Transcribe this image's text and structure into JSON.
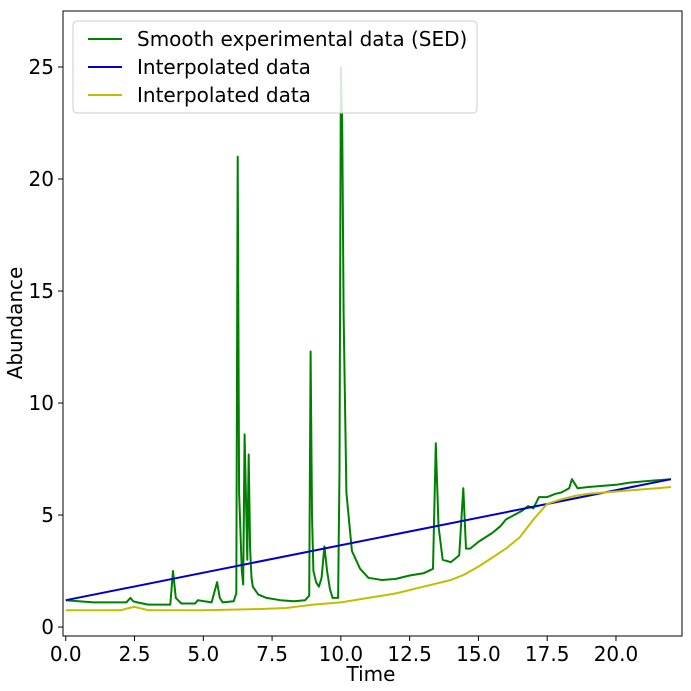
{
  "chart_data": {
    "type": "line",
    "xlabel": "Time",
    "ylabel": "Abundance",
    "xlim": [
      -0.1,
      22.4
    ],
    "ylim": [
      -0.4,
      27.5
    ],
    "xticks": [
      0.0,
      2.5,
      5.0,
      7.5,
      10.0,
      12.5,
      15.0,
      17.5,
      20.0
    ],
    "xtick_labels": [
      "0.0",
      "2.5",
      "5.0",
      "7.5",
      "10.0",
      "12.5",
      "15.0",
      "17.5",
      "20.0"
    ],
    "yticks": [
      0,
      5,
      10,
      15,
      20,
      25
    ],
    "ytick_labels": [
      "0",
      "5",
      "10",
      "15",
      "20",
      "25"
    ],
    "grid": false,
    "legend_position": "top-left",
    "series": [
      {
        "name": "Smooth experimental data (SED)",
        "color": "#008000",
        "x": [
          0.0,
          1.0,
          2.2,
          2.35,
          2.45,
          2.6,
          3.0,
          3.8,
          3.9,
          4.0,
          4.2,
          4.7,
          4.8,
          5.3,
          5.5,
          5.6,
          5.7,
          6.1,
          6.2,
          6.25,
          6.3,
          6.4,
          6.45,
          6.5,
          6.6,
          6.65,
          6.7,
          6.75,
          6.8,
          7.0,
          7.3,
          7.8,
          8.3,
          8.7,
          8.85,
          8.9,
          8.95,
          9.0,
          9.1,
          9.2,
          9.3,
          9.4,
          9.5,
          9.6,
          9.7,
          9.9,
          9.95,
          10.0,
          10.05,
          10.1,
          10.2,
          10.4,
          10.7,
          11.0,
          11.5,
          12.0,
          12.5,
          13.0,
          13.35,
          13.45,
          13.55,
          13.7,
          14.0,
          14.3,
          14.45,
          14.55,
          14.7,
          15.0,
          15.5,
          15.8,
          16.0,
          16.3,
          16.6,
          16.8,
          17.0,
          17.2,
          17.5,
          17.8,
          18.0,
          18.3,
          18.4,
          18.6,
          19.0,
          19.5,
          20.0,
          20.5,
          21.0,
          21.5,
          22.0
        ],
        "y": [
          1.2,
          1.1,
          1.1,
          1.3,
          1.15,
          1.1,
          1.0,
          1.0,
          2.5,
          1.3,
          1.05,
          1.05,
          1.2,
          1.1,
          2.0,
          1.3,
          1.1,
          1.15,
          1.5,
          21.0,
          6.0,
          2.5,
          1.9,
          8.6,
          3.0,
          7.7,
          3.5,
          2.2,
          1.8,
          1.45,
          1.3,
          1.2,
          1.15,
          1.2,
          1.4,
          12.3,
          5.0,
          2.5,
          2.0,
          1.8,
          2.2,
          3.6,
          2.5,
          1.7,
          1.3,
          1.3,
          7.0,
          25.0,
          22.5,
          14.0,
          6.0,
          3.4,
          2.6,
          2.2,
          2.1,
          2.15,
          2.3,
          2.4,
          2.6,
          8.2,
          4.5,
          3.0,
          2.9,
          3.2,
          6.2,
          3.5,
          3.5,
          3.8,
          4.2,
          4.5,
          4.8,
          5.0,
          5.2,
          5.4,
          5.3,
          5.8,
          5.8,
          5.95,
          6.0,
          6.2,
          6.6,
          6.2,
          6.25,
          6.3,
          6.35,
          6.45,
          6.5,
          6.55,
          6.6
        ]
      },
      {
        "name": "Interpolated data",
        "color": "#0000cc",
        "x": [
          0.0,
          22.0
        ],
        "y": [
          1.2,
          6.6
        ]
      },
      {
        "name": "Interpolated data",
        "color": "#bfbf00",
        "x": [
          0.0,
          2.0,
          2.3,
          2.5,
          3.0,
          5.0,
          7.0,
          8.0,
          9.0,
          10.0,
          11.0,
          12.0,
          13.0,
          14.0,
          14.5,
          15.0,
          15.5,
          16.0,
          16.5,
          17.0,
          17.5,
          18.0,
          18.5,
          19.0,
          19.5,
          20.0,
          20.5,
          21.0,
          21.5,
          22.0
        ],
        "y": [
          0.75,
          0.75,
          0.85,
          0.9,
          0.75,
          0.75,
          0.8,
          0.85,
          1.0,
          1.1,
          1.3,
          1.5,
          1.8,
          2.1,
          2.35,
          2.7,
          3.1,
          3.5,
          4.0,
          4.8,
          5.5,
          5.7,
          5.85,
          5.95,
          6.0,
          6.05,
          6.1,
          6.15,
          6.2,
          6.25
        ]
      }
    ]
  }
}
